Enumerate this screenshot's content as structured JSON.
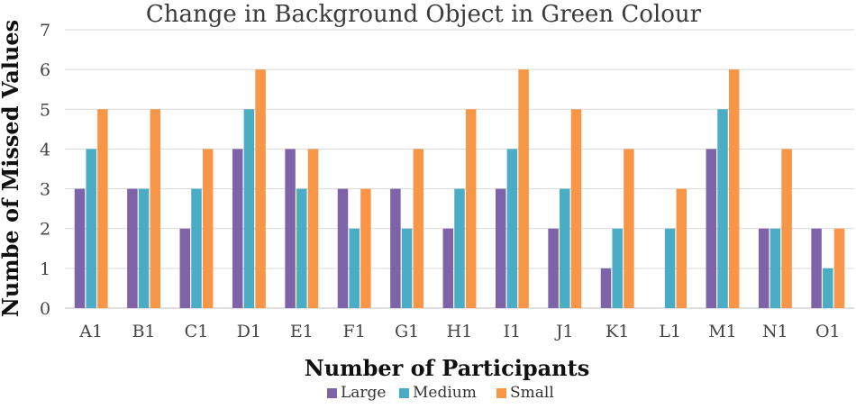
{
  "chart_data": {
    "type": "bar",
    "title": "Change in Background Object in Green Colour",
    "xlabel": "Number of Participants",
    "ylabel": "Numbe of Missed Values",
    "ylim": [
      0,
      7
    ],
    "yticks": [
      "0",
      "1",
      "2",
      "3",
      "4",
      "5",
      "6",
      "7"
    ],
    "grid": true,
    "legend_position": "bottom",
    "categories": [
      "A1",
      "B1",
      "C1",
      "D1",
      "E1",
      "F1",
      "G1",
      "H1",
      "I1",
      "J1",
      "K1",
      "L1",
      "M1",
      "N1",
      "O1"
    ],
    "series": [
      {
        "name": "Large",
        "color": "#7e63a8",
        "values": [
          3,
          3,
          2,
          4,
          4,
          3,
          3,
          2,
          3,
          2,
          1,
          0,
          4,
          2,
          2
        ]
      },
      {
        "name": "Medium",
        "color": "#4aacc5",
        "values": [
          4,
          3,
          3,
          5,
          3,
          2,
          2,
          3,
          4,
          3,
          2,
          2,
          5,
          2,
          1
        ]
      },
      {
        "name": "Small",
        "color": "#f79646",
        "values": [
          5,
          5,
          4,
          6,
          4,
          3,
          4,
          5,
          6,
          5,
          4,
          3,
          6,
          4,
          2
        ]
      }
    ]
  }
}
